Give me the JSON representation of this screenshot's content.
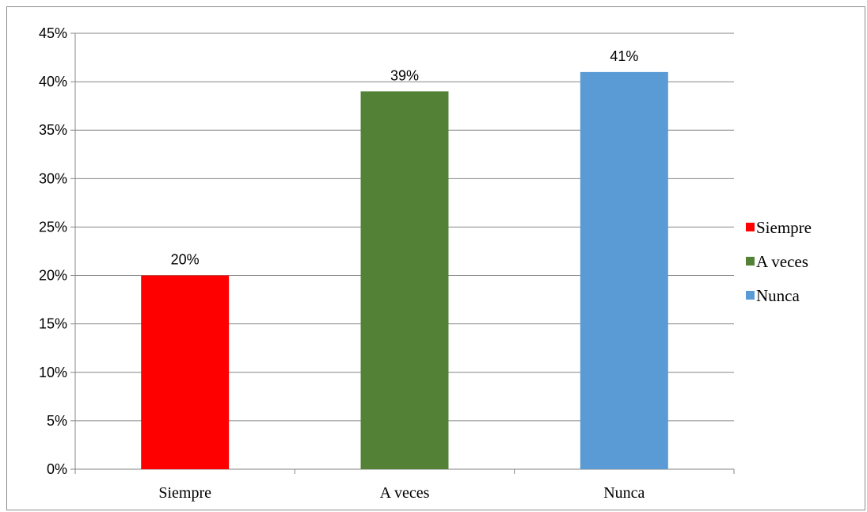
{
  "chart_data": {
    "type": "bar",
    "title": "",
    "xlabel": "",
    "ylabel": "",
    "categories": [
      "Siempre",
      "A veces",
      "Nunca"
    ],
    "values": [
      20,
      39,
      41
    ],
    "data_labels": [
      "20%",
      "39%",
      "41%"
    ],
    "colors": [
      "#ff0000",
      "#538135",
      "#5b9bd5"
    ],
    "ylim": [
      0,
      45
    ],
    "y_ticks": [
      "0%",
      "5%",
      "10%",
      "15%",
      "20%",
      "25%",
      "30%",
      "35%",
      "40%",
      "45%"
    ],
    "grid": true,
    "legend": {
      "position": "right",
      "entries": [
        "Siempre",
        "A veces",
        "Nunca"
      ]
    }
  }
}
